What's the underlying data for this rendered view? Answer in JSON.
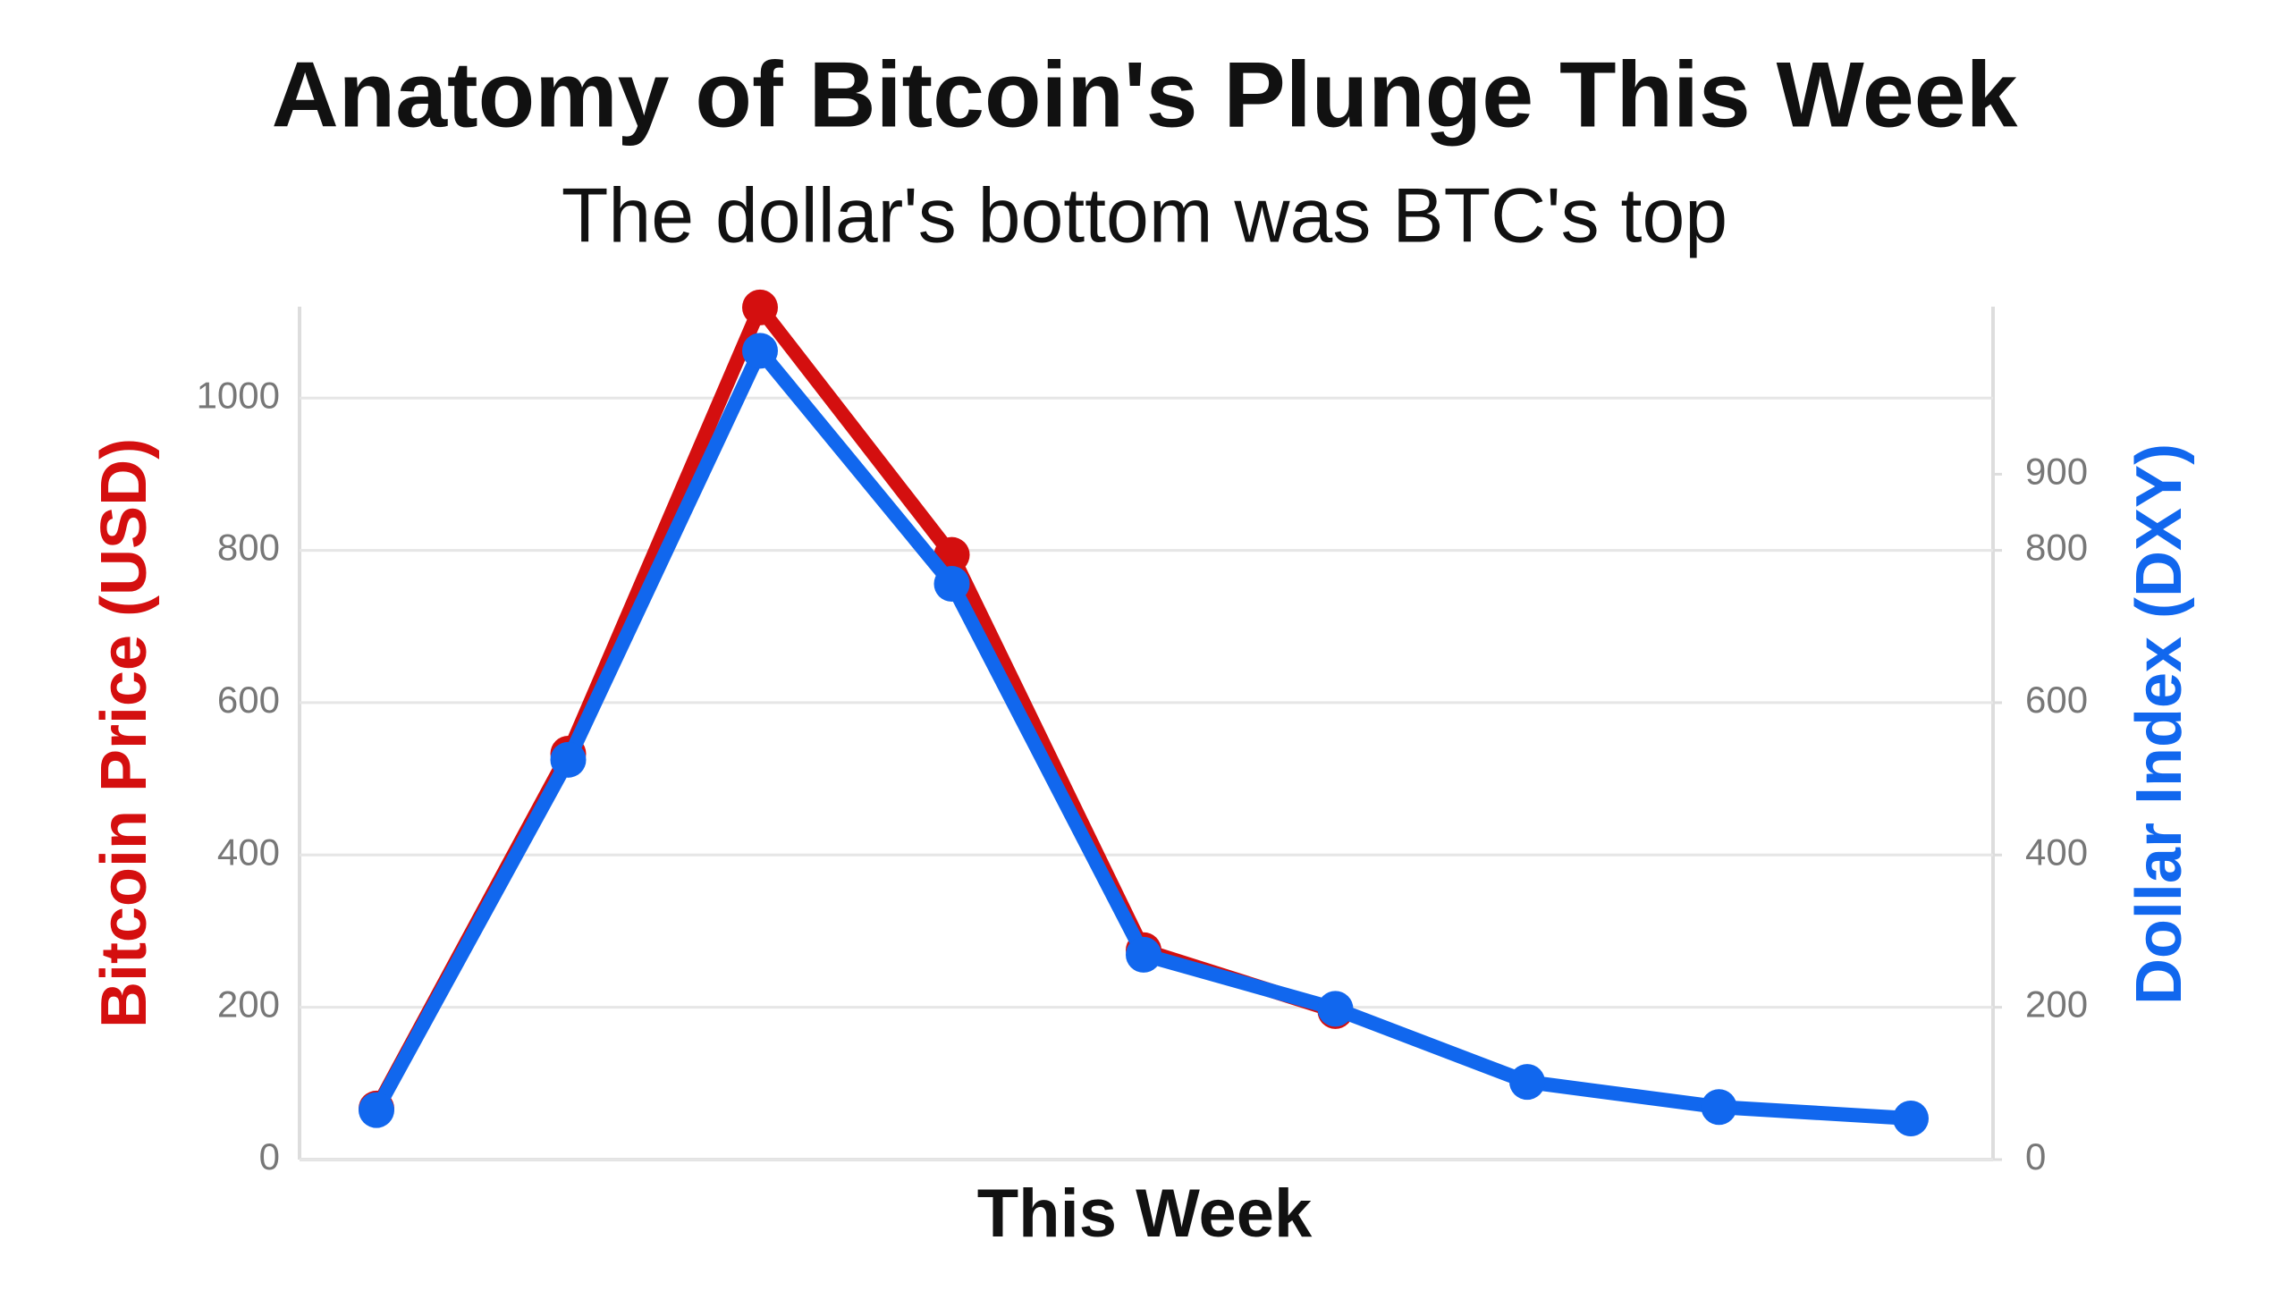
{
  "chart_data": {
    "type": "line",
    "title": "Anatomy of Bitcoin's Plunge This Week",
    "subtitle": "The dollar's bottom was BTC's top",
    "x_label": "This Week",
    "y_label": "Bitcoin Price (USD)",
    "y2_label": "Dollar Index (DXY)",
    "categories": [
      null,
      null,
      null,
      null,
      null,
      null,
      null,
      null,
      null
    ],
    "series": [
      {
        "name": "Bitcoin Price (USD)",
        "color": "#d40f0f",
        "values": [
          67,
          533,
          1119,
          794,
          275,
          195,
          null,
          null,
          null
        ]
      },
      {
        "name": "Dollar Index (DXY)",
        "color": "#1167ee",
        "axis": "y2",
        "values": [
          65,
          525,
          1062,
          756,
          269,
          198,
          102,
          69,
          54
        ]
      }
    ],
    "ylim": [
      0,
      1120
    ],
    "yticks": [
      0,
      200,
      400,
      600,
      800,
      1000
    ],
    "y2lim": [
      0,
      1120
    ],
    "y2ticks": [
      0,
      200,
      400,
      600,
      800,
      900
    ],
    "grid": true
  }
}
